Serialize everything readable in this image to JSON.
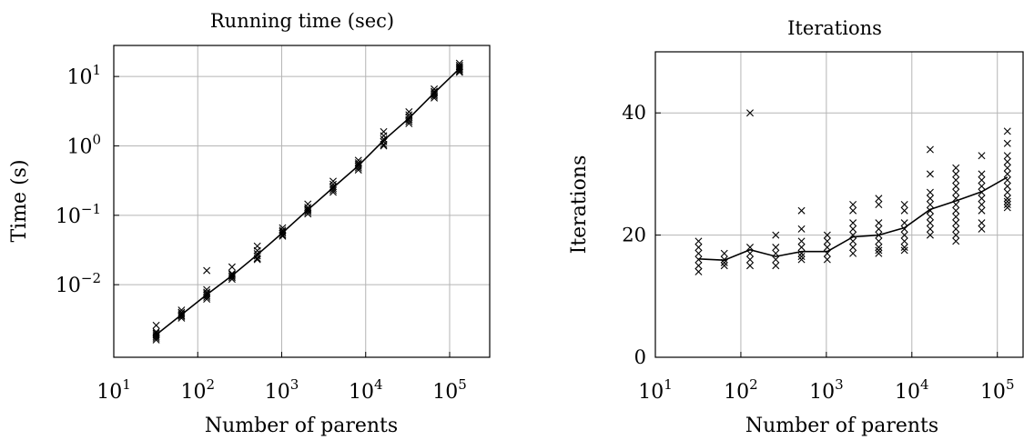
{
  "chart_data": [
    {
      "type": "scatter",
      "title": "Running time (sec)",
      "xlabel": "Number of parents",
      "ylabel": "Time (s)",
      "xscale": "log",
      "yscale": "log",
      "xlim": [
        10,
        300000
      ],
      "ylim": [
        0.0009,
        28
      ],
      "x_ticks": [
        {
          "base": "10",
          "exp": "1",
          "value": 10
        },
        {
          "base": "10",
          "exp": "2",
          "value": 100
        },
        {
          "base": "10",
          "exp": "3",
          "value": 1000
        },
        {
          "base": "10",
          "exp": "4",
          "value": 10000
        },
        {
          "base": "10",
          "exp": "5",
          "value": 100000
        }
      ],
      "y_ticks": [
        {
          "base": "10",
          "exp": "−2",
          "value": 0.01
        },
        {
          "base": "10",
          "exp": "−1",
          "value": 0.1
        },
        {
          "base": "10",
          "exp": "0",
          "value": 1
        },
        {
          "base": "10",
          "exp": "1",
          "value": 10
        }
      ],
      "grid": true,
      "mean_line": {
        "x": [
          32,
          64,
          128,
          256,
          512,
          1024,
          2048,
          4096,
          8192,
          16384,
          32768,
          65536,
          131072
        ],
        "y": [
          0.0019,
          0.0037,
          0.0072,
          0.0135,
          0.027,
          0.056,
          0.12,
          0.25,
          0.52,
          1.2,
          2.5,
          5.8,
          13
        ]
      },
      "points": {
        "marker": "x",
        "x": [
          32,
          32,
          32,
          32,
          32,
          32,
          32,
          64,
          64,
          64,
          64,
          64,
          64,
          128,
          128,
          128,
          128,
          128,
          128,
          128,
          256,
          256,
          256,
          256,
          256,
          256,
          512,
          512,
          512,
          512,
          512,
          512,
          1024,
          1024,
          1024,
          1024,
          1024,
          1024,
          2048,
          2048,
          2048,
          2048,
          2048,
          2048,
          4096,
          4096,
          4096,
          4096,
          4096,
          4096,
          8192,
          8192,
          8192,
          8192,
          8192,
          8192,
          16384,
          16384,
          16384,
          16384,
          16384,
          16384,
          32768,
          32768,
          32768,
          32768,
          32768,
          32768,
          65536,
          65536,
          65536,
          65536,
          65536,
          65536,
          131072,
          131072,
          131072,
          131072,
          131072,
          131072,
          131072
        ],
        "y": [
          0.0026,
          0.0021,
          0.002,
          0.0019,
          0.0018,
          0.0017,
          0.0016,
          0.0043,
          0.004,
          0.0038,
          0.0036,
          0.0035,
          0.0033,
          0.016,
          0.0085,
          0.0078,
          0.0074,
          0.007,
          0.0066,
          0.0062,
          0.018,
          0.0145,
          0.014,
          0.0133,
          0.0127,
          0.012,
          0.036,
          0.031,
          0.028,
          0.026,
          0.024,
          0.023,
          0.066,
          0.061,
          0.058,
          0.055,
          0.052,
          0.05,
          0.145,
          0.13,
          0.123,
          0.118,
          0.112,
          0.105,
          0.31,
          0.28,
          0.26,
          0.245,
          0.23,
          0.215,
          0.62,
          0.57,
          0.54,
          0.51,
          0.48,
          0.45,
          1.6,
          1.4,
          1.25,
          1.15,
          1.05,
          1.0,
          3.1,
          2.8,
          2.6,
          2.4,
          2.25,
          2.1,
          6.6,
          6.1,
          5.8,
          5.5,
          5.2,
          4.9,
          15.5,
          14.5,
          13.8,
          13.2,
          12.6,
          12,
          11.5
        ]
      }
    },
    {
      "type": "scatter",
      "title": "Iterations",
      "xlabel": "Number of parents",
      "ylabel": "Iterations",
      "xscale": "log",
      "yscale": "linear",
      "xlim": [
        10,
        200000
      ],
      "ylim": [
        0,
        50
      ],
      "x_ticks": [
        {
          "base": "10",
          "exp": "1",
          "value": 10
        },
        {
          "base": "10",
          "exp": "2",
          "value": 100
        },
        {
          "base": "10",
          "exp": "3",
          "value": 1000
        },
        {
          "base": "10",
          "exp": "4",
          "value": 10000
        },
        {
          "base": "10",
          "exp": "5",
          "value": 100000
        }
      ],
      "y_ticks": [
        {
          "label": "0",
          "value": 0
        },
        {
          "label": "20",
          "value": 20
        },
        {
          "label": "40",
          "value": 40
        }
      ],
      "grid": true,
      "mean_line": {
        "x": [
          32,
          64,
          128,
          256,
          512,
          1024,
          2048,
          4096,
          8192,
          16384,
          32768,
          65536,
          131072
        ],
        "y": [
          16.1,
          15.9,
          17.6,
          16.5,
          17.3,
          17.3,
          19.7,
          20.0,
          21.2,
          24.2,
          25.6,
          27.1,
          29.5
        ]
      },
      "points": {
        "marker": "x",
        "x": [
          32,
          32,
          32,
          32,
          32,
          32,
          64,
          64,
          64,
          64,
          128,
          128,
          128,
          128,
          128,
          256,
          256,
          256,
          256,
          256,
          512,
          512,
          512,
          512,
          512,
          512,
          512,
          1024,
          1024,
          1024,
          1024,
          1024,
          2048,
          2048,
          2048,
          2048,
          2048,
          2048,
          2048,
          2048,
          4096,
          4096,
          4096,
          4096,
          4096,
          4096,
          4096,
          4096,
          4096,
          8192,
          8192,
          8192,
          8192,
          8192,
          8192,
          8192,
          8192,
          16384,
          16384,
          16384,
          16384,
          16384,
          16384,
          16384,
          16384,
          16384,
          16384,
          32768,
          32768,
          32768,
          32768,
          32768,
          32768,
          32768,
          32768,
          32768,
          32768,
          32768,
          32768,
          32768,
          65536,
          65536,
          65536,
          65536,
          65536,
          65536,
          65536,
          65536,
          65536,
          65536,
          131072,
          131072,
          131072,
          131072,
          131072,
          131072,
          131072,
          131072,
          131072,
          131072,
          131072,
          131072,
          131072
        ],
        "y": [
          19,
          18,
          17,
          16,
          15,
          14,
          17,
          16,
          15.5,
          15,
          40,
          18,
          17,
          16,
          15,
          20,
          18,
          17,
          16,
          15,
          24,
          21,
          19,
          18,
          17,
          16.5,
          16,
          20,
          19,
          18,
          17,
          16,
          25,
          24,
          22,
          21,
          20,
          19,
          18,
          17,
          26,
          25,
          22,
          21,
          20,
          19,
          18,
          17.5,
          17,
          25,
          24,
          22,
          21,
          20,
          19,
          18,
          17.5,
          34,
          30,
          27,
          26,
          25,
          24,
          23,
          22,
          21,
          20,
          31,
          30,
          29,
          28,
          27,
          26,
          25,
          24,
          23,
          22,
          21,
          20,
          19,
          33,
          30,
          29,
          28,
          27,
          26,
          25,
          24,
          22,
          21,
          37,
          35,
          33,
          32,
          31,
          30,
          29,
          28,
          27,
          26,
          25.5,
          25,
          24.5
        ]
      }
    }
  ]
}
